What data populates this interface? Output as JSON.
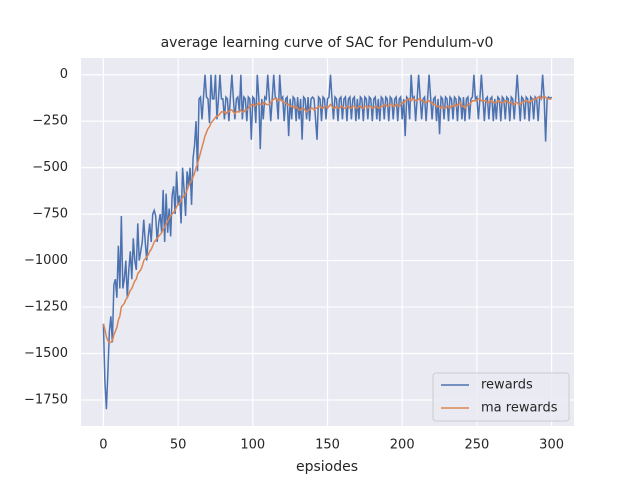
{
  "chart_data": {
    "type": "line",
    "title": "average learning curve of SAC for Pendulum-v0",
    "x_label": "epsiodes",
    "x": [
      0,
      1,
      2,
      3,
      4,
      5,
      6,
      7,
      8,
      9,
      10,
      11,
      12,
      13,
      14,
      15,
      16,
      17,
      18,
      19,
      20,
      21,
      22,
      23,
      24,
      25,
      26,
      27,
      28,
      29,
      30,
      31,
      32,
      33,
      34,
      35,
      36,
      37,
      38,
      39,
      40,
      41,
      42,
      43,
      44,
      45,
      46,
      47,
      48,
      49,
      50,
      51,
      52,
      53,
      54,
      55,
      56,
      57,
      58,
      59,
      60,
      61,
      62,
      63,
      64,
      65,
      66,
      67,
      68,
      69,
      70,
      71,
      72,
      73,
      74,
      75,
      76,
      77,
      78,
      79,
      80,
      81,
      82,
      83,
      84,
      85,
      86,
      87,
      88,
      89,
      90,
      91,
      92,
      93,
      94,
      95,
      96,
      97,
      98,
      99,
      100,
      101,
      102,
      103,
      104,
      105,
      106,
      107,
      108,
      109,
      110,
      111,
      112,
      113,
      114,
      115,
      116,
      117,
      118,
      119,
      120,
      121,
      122,
      123,
      124,
      125,
      126,
      127,
      128,
      129,
      130,
      131,
      132,
      133,
      134,
      135,
      136,
      137,
      138,
      139,
      140,
      141,
      142,
      143,
      144,
      145,
      146,
      147,
      148,
      149,
      150,
      151,
      152,
      153,
      154,
      155,
      156,
      157,
      158,
      159,
      160,
      161,
      162,
      163,
      164,
      165,
      166,
      167,
      168,
      169,
      170,
      171,
      172,
      173,
      174,
      175,
      176,
      177,
      178,
      179,
      180,
      181,
      182,
      183,
      184,
      185,
      186,
      187,
      188,
      189,
      190,
      191,
      192,
      193,
      194,
      195,
      196,
      197,
      198,
      199,
      200,
      201,
      202,
      203,
      204,
      205,
      206,
      207,
      208,
      209,
      210,
      211,
      212,
      213,
      214,
      215,
      216,
      217,
      218,
      219,
      220,
      221,
      222,
      223,
      224,
      225,
      226,
      227,
      228,
      229,
      230,
      231,
      232,
      233,
      234,
      235,
      236,
      237,
      238,
      239,
      240,
      241,
      242,
      243,
      244,
      245,
      246,
      247,
      248,
      249,
      250,
      251,
      252,
      253,
      254,
      255,
      256,
      257,
      258,
      259,
      260,
      261,
      262,
      263,
      264,
      265,
      266,
      267,
      268,
      269,
      270,
      271,
      272,
      273,
      274,
      275,
      276,
      277,
      278,
      279,
      280,
      281,
      282,
      283,
      284,
      285,
      286,
      287,
      288,
      289,
      290,
      291,
      292,
      293,
      294,
      295,
      296,
      297,
      298,
      299,
      300
    ],
    "series": [
      {
        "name": "rewards",
        "color": "#4c72b0",
        "values": [
          -1340,
          -1650,
          -1800,
          -1600,
          -1380,
          -1300,
          -1440,
          -1130,
          -1100,
          -1200,
          -920,
          -1150,
          -760,
          -1150,
          -1100,
          -1000,
          -1200,
          -1050,
          -950,
          -1100,
          -880,
          -1000,
          -1050,
          -800,
          -1000,
          -950,
          -900,
          -780,
          -900,
          -1000,
          -870,
          -800,
          -900,
          -750,
          -730,
          -760,
          -900,
          -800,
          -750,
          -850,
          -620,
          -900,
          -640,
          -850,
          -720,
          -870,
          -650,
          -600,
          -750,
          -520,
          -700,
          -650,
          -800,
          -500,
          -620,
          -760,
          -520,
          -600,
          -500,
          -700,
          -450,
          -380,
          -250,
          -520,
          -130,
          -120,
          -240,
          -120,
          0,
          -120,
          -130,
          -260,
          0,
          -130,
          -130,
          0,
          -240,
          -130,
          0,
          -130,
          -130,
          -240,
          -120,
          -130,
          -250,
          -120,
          0,
          -130,
          -240,
          -130,
          -120,
          -200,
          0,
          -240,
          -120,
          -130,
          -250,
          -120,
          -130,
          -350,
          -120,
          -130,
          -260,
          0,
          -120,
          -400,
          -130,
          -240,
          -120,
          -130,
          0,
          -120,
          -250,
          -130,
          0,
          -120,
          -130,
          -240,
          0,
          -130,
          -120,
          -250,
          -130,
          -120,
          -330,
          -130,
          -240,
          -120,
          -130,
          -250,
          -120,
          -240,
          -130,
          -350,
          -120,
          -130,
          -240,
          -120,
          -250,
          -130,
          -120,
          -130,
          -240,
          -350,
          -120,
          -130,
          -250,
          -120,
          -130,
          -240,
          -130,
          -120,
          0,
          -130,
          -240,
          -120,
          -130,
          -250,
          -130,
          -120,
          -240,
          -130,
          -120,
          -250,
          -130,
          -120,
          -240,
          -130,
          -120,
          -250,
          -130,
          -240,
          -120,
          -130,
          -250,
          -120,
          -130,
          -240,
          -120,
          -130,
          -250,
          -130,
          -120,
          -240,
          -130,
          -250,
          -120,
          -130,
          -240,
          -120,
          -130,
          -250,
          -120,
          -130,
          -240,
          -130,
          -120,
          -250,
          -130,
          -120,
          -240,
          -130,
          -330,
          -120,
          -130,
          -240,
          0,
          -130,
          -120,
          -250,
          -130,
          0,
          -120,
          -240,
          -130,
          -120,
          -250,
          -130,
          0,
          -120,
          -240,
          -130,
          -120,
          -250,
          -130,
          -320,
          -120,
          -130,
          -240,
          -120,
          -130,
          -250,
          -120,
          -130,
          -240,
          -120,
          -130,
          -250,
          -120,
          -130,
          -240,
          -120,
          -250,
          -130,
          -120,
          -240,
          -130,
          -120,
          0,
          -130,
          -120,
          -240,
          -130,
          0,
          -120,
          -250,
          -130,
          -120,
          -240,
          -130,
          -120,
          -250,
          -130,
          -240,
          -120,
          -130,
          -250,
          -120,
          -130,
          -240,
          -120,
          -130,
          -250,
          -120,
          -130,
          -240,
          -120,
          0,
          -130,
          -250,
          -120,
          -130,
          -240,
          -120,
          -130,
          -250,
          -120,
          -130,
          -240,
          -120,
          -130,
          -250,
          -120,
          -130,
          0,
          -120,
          -360,
          -130,
          -120,
          -130,
          -120
        ]
      },
      {
        "name": "ma rewards",
        "color": "#dd8452",
        "values": [
          -1340,
          -1370,
          -1410,
          -1430,
          -1440,
          -1440,
          -1430,
          -1400,
          -1380,
          -1360,
          -1320,
          -1300,
          -1250,
          -1240,
          -1230,
          -1210,
          -1200,
          -1180,
          -1160,
          -1150,
          -1130,
          -1110,
          -1100,
          -1070,
          -1060,
          -1050,
          -1030,
          -1000,
          -990,
          -980,
          -970,
          -950,
          -940,
          -920,
          -900,
          -890,
          -880,
          -870,
          -860,
          -850,
          -830,
          -820,
          -800,
          -790,
          -770,
          -760,
          -750,
          -740,
          -730,
          -710,
          -700,
          -690,
          -680,
          -660,
          -650,
          -640,
          -620,
          -600,
          -580,
          -570,
          -550,
          -530,
          -500,
          -480,
          -450,
          -420,
          -390,
          -360,
          -330,
          -310,
          -290,
          -280,
          -260,
          -250,
          -240,
          -230,
          -220,
          -220,
          -210,
          -200,
          -200,
          -200,
          -210,
          -200,
          -200,
          -190,
          -190,
          -200,
          -210,
          -200,
          -200,
          -200,
          -190,
          -200,
          -200,
          -190,
          -190,
          -180,
          -170,
          -160,
          -160,
          -170,
          -160,
          -160,
          -150,
          -160,
          -160,
          -150,
          -150,
          -160,
          -160,
          -160,
          -150,
          -140,
          -130,
          -130,
          -130,
          -140,
          -130,
          -140,
          -140,
          -150,
          -150,
          -160,
          -160,
          -170,
          -170,
          -170,
          -180,
          -170,
          -180,
          -190,
          -190,
          -180,
          -180,
          -190,
          -200,
          -190,
          -190,
          -180,
          -180,
          -190,
          -180,
          -180,
          -170,
          -170,
          -180,
          -180,
          -170,
          -170,
          -180,
          -170,
          -160,
          -170,
          -180,
          -180,
          -170,
          -180,
          -180,
          -170,
          -170,
          -180,
          -180,
          -170,
          -170,
          -180,
          -180,
          -170,
          -170,
          -180,
          -180,
          -170,
          -170,
          -180,
          -180,
          -170,
          -170,
          -180,
          -170,
          -170,
          -180,
          -180,
          -170,
          -170,
          -180,
          -180,
          -170,
          -170,
          -160,
          -160,
          -170,
          -170,
          -160,
          -160,
          -170,
          -170,
          -160,
          -160,
          -170,
          -160,
          -150,
          -150,
          -140,
          -140,
          -130,
          -130,
          -140,
          -130,
          -130,
          -140,
          -140,
          -130,
          -130,
          -140,
          -140,
          -150,
          -150,
          -140,
          -140,
          -150,
          -150,
          -160,
          -160,
          -170,
          -170,
          -170,
          -180,
          -170,
          -180,
          -180,
          -170,
          -170,
          -180,
          -170,
          -170,
          -160,
          -170,
          -160,
          -160,
          -150,
          -170,
          -170,
          -180,
          -170,
          -160,
          -160,
          -150,
          -140,
          -140,
          -140,
          -140,
          -130,
          -130,
          -140,
          -140,
          -140,
          -140,
          -150,
          -150,
          -140,
          -140,
          -150,
          -150,
          -150,
          -140,
          -140,
          -150,
          -150,
          -150,
          -140,
          -140,
          -150,
          -150,
          -150,
          -160,
          -160,
          -150,
          -150,
          -160,
          -160,
          -150,
          -150,
          -140,
          -140,
          -140,
          -150,
          -140,
          -140,
          -130,
          -130,
          -130,
          -120,
          -120,
          -130,
          -120,
          -120,
          -120,
          -130,
          -130,
          -130,
          -130
        ]
      }
    ],
    "xlim": [
      -15,
      315
    ],
    "ylim": [
      -1890,
      90
    ],
    "xticks": [
      0,
      50,
      100,
      150,
      200,
      250,
      300
    ],
    "yticks": [
      {
        "value": 0,
        "label": "0"
      },
      {
        "value": -250,
        "label": "−250"
      },
      {
        "value": -500,
        "label": "−500"
      },
      {
        "value": -750,
        "label": "−750"
      },
      {
        "value": -1000,
        "label": "−1000"
      },
      {
        "value": -1250,
        "label": "−1250"
      },
      {
        "value": -1500,
        "label": "−1500"
      },
      {
        "value": -1750,
        "label": "−1750"
      }
    ],
    "grid": true,
    "legend": "lower right"
  }
}
